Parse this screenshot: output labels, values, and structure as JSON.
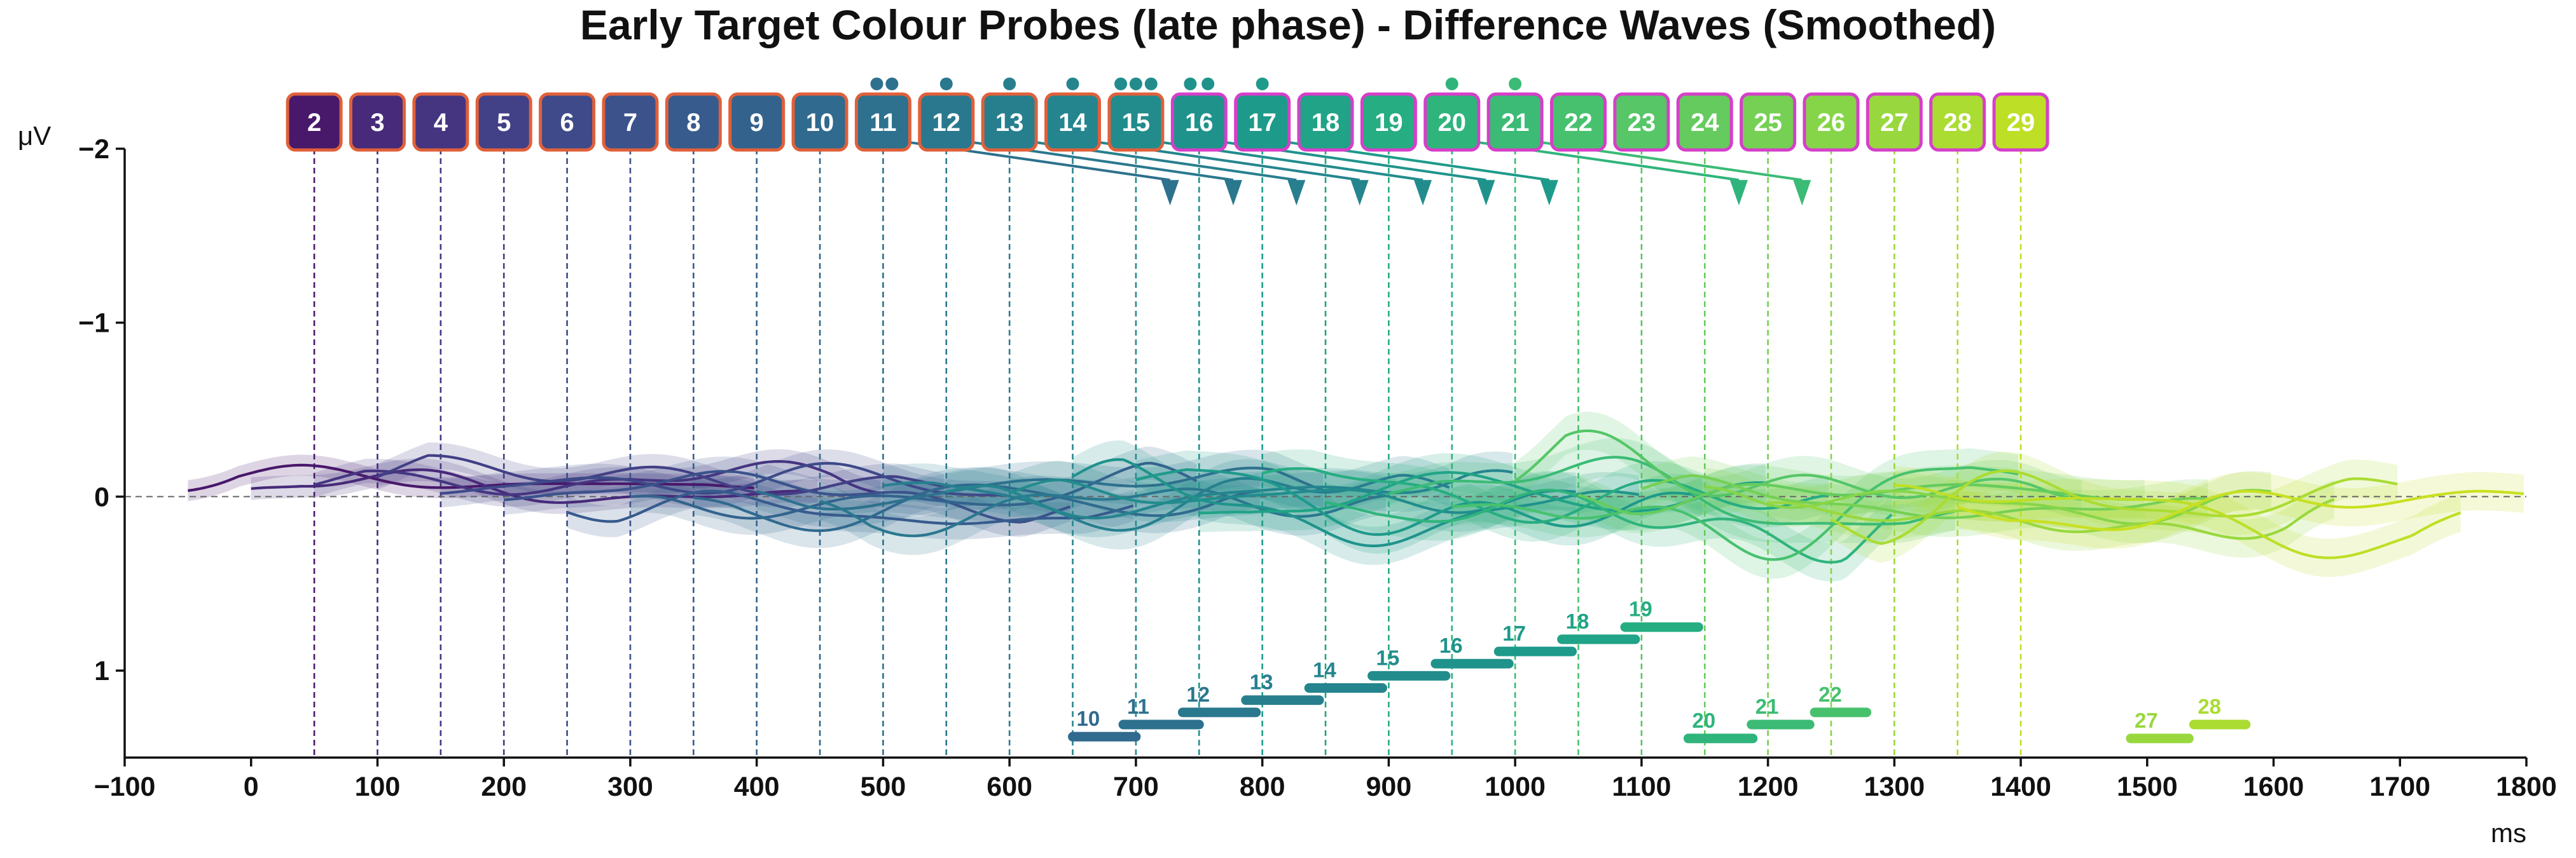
{
  "chart_data": {
    "type": "line",
    "title": "Early Target Colour Probes (late phase) - Difference Waves (Smoothed)",
    "xlabel": "ms",
    "ylabel": "μV",
    "xlim": [
      -100,
      1800
    ],
    "ylim": [
      -2,
      1.5
    ],
    "y_inverted": true,
    "x_ticks": [
      -100,
      0,
      100,
      200,
      300,
      400,
      500,
      600,
      700,
      800,
      900,
      1000,
      1100,
      1200,
      1300,
      1400,
      1500,
      1600,
      1700,
      1800
    ],
    "y_ticks": [
      -2,
      -1,
      0,
      1
    ],
    "y_tick_labels": [
      "−2",
      "−1",
      "0",
      "1"
    ],
    "zero_line": true,
    "grid": false,
    "probes": [
      {
        "label": "2",
        "x": 50,
        "color": "#48186a",
        "border": "#e0603a"
      },
      {
        "label": "3",
        "x": 100,
        "color": "#472a7a",
        "border": "#e0603a"
      },
      {
        "label": "4",
        "x": 150,
        "color": "#453581",
        "border": "#e0603a"
      },
      {
        "label": "5",
        "x": 200,
        "color": "#424086",
        "border": "#e0603a"
      },
      {
        "label": "6",
        "x": 250,
        "color": "#3e4a89",
        "border": "#e0603a"
      },
      {
        "label": "7",
        "x": 300,
        "color": "#3b528b",
        "border": "#e0603a"
      },
      {
        "label": "8",
        "x": 350,
        "color": "#375b8d",
        "border": "#e0603a"
      },
      {
        "label": "9",
        "x": 400,
        "color": "#33638d",
        "border": "#e0603a"
      },
      {
        "label": "10",
        "x": 450,
        "color": "#306a8e",
        "border": "#e0603a"
      },
      {
        "label": "11",
        "x": 500,
        "color": "#2d718e",
        "border": "#e0603a"
      },
      {
        "label": "12",
        "x": 550,
        "color": "#2a788e",
        "border": "#e0603a"
      },
      {
        "label": "13",
        "x": 600,
        "color": "#277f8e",
        "border": "#e0603a"
      },
      {
        "label": "14",
        "x": 650,
        "color": "#25858e",
        "border": "#e0603a"
      },
      {
        "label": "15",
        "x": 700,
        "color": "#228c8d",
        "border": "#e0603a"
      },
      {
        "label": "16",
        "x": 750,
        "color": "#1f938b",
        "border": "#d63fc9"
      },
      {
        "label": "17",
        "x": 800,
        "color": "#1e9a8a",
        "border": "#d63fc9"
      },
      {
        "label": "18",
        "x": 850,
        "color": "#20a386",
        "border": "#d63fc9"
      },
      {
        "label": "19",
        "x": 900,
        "color": "#26ad81",
        "border": "#d63fc9"
      },
      {
        "label": "20",
        "x": 950,
        "color": "#2fb47c",
        "border": "#d63fc9"
      },
      {
        "label": "21",
        "x": 1000,
        "color": "#3bbb75",
        "border": "#d63fc9"
      },
      {
        "label": "22",
        "x": 1050,
        "color": "#48c16e",
        "border": "#d63fc9"
      },
      {
        "label": "23",
        "x": 1100,
        "color": "#56c667",
        "border": "#d63fc9"
      },
      {
        "label": "24",
        "x": 1150,
        "color": "#65cb5e",
        "border": "#d63fc9"
      },
      {
        "label": "25",
        "x": 1200,
        "color": "#75d054",
        "border": "#d63fc9"
      },
      {
        "label": "26",
        "x": 1250,
        "color": "#86d549",
        "border": "#d63fc9"
      },
      {
        "label": "27",
        "x": 1300,
        "color": "#98d83e",
        "border": "#d63fc9"
      },
      {
        "label": "28",
        "x": 1350,
        "color": "#aadc32",
        "border": "#d63fc9"
      },
      {
        "label": "29",
        "x": 1400,
        "color": "#bddf26",
        "border": "#d63fc9"
      }
    ],
    "sig_dots": [
      {
        "x": 495,
        "color": "#2d718e"
      },
      {
        "x": 507,
        "color": "#2d718e"
      },
      {
        "x": 550,
        "color": "#2a788e"
      },
      {
        "x": 600,
        "color": "#277f8e"
      },
      {
        "x": 650,
        "color": "#25858e"
      },
      {
        "x": 688,
        "color": "#228c8d"
      },
      {
        "x": 700,
        "color": "#228c8d"
      },
      {
        "x": 712,
        "color": "#228c8d"
      },
      {
        "x": 743,
        "color": "#1f938b"
      },
      {
        "x": 757,
        "color": "#1f938b"
      },
      {
        "x": 800,
        "color": "#1e9a8a"
      },
      {
        "x": 950,
        "color": "#2fb47c"
      },
      {
        "x": 1000,
        "color": "#3bbb75"
      }
    ],
    "pointers": [
      {
        "from_x": 500,
        "to_x": 727,
        "y": -1.82,
        "color": "#2d718e"
      },
      {
        "from_x": 550,
        "to_x": 777,
        "y": -1.82,
        "color": "#2a788e"
      },
      {
        "from_x": 600,
        "to_x": 827,
        "y": -1.82,
        "color": "#277f8e"
      },
      {
        "from_x": 650,
        "to_x": 877,
        "y": -1.82,
        "color": "#25858e"
      },
      {
        "from_x": 700,
        "to_x": 927,
        "y": -1.82,
        "color": "#228c8d"
      },
      {
        "from_x": 750,
        "to_x": 977,
        "y": -1.82,
        "color": "#1f938b"
      },
      {
        "from_x": 800,
        "to_x": 1027,
        "y": -1.82,
        "color": "#1e9a8a"
      },
      {
        "from_x": 950,
        "to_x": 1177,
        "y": -1.82,
        "color": "#2fb47c"
      },
      {
        "from_x": 1000,
        "to_x": 1227,
        "y": -1.82,
        "color": "#3bbb75"
      }
    ],
    "segments": [
      {
        "label": "10",
        "x1": 650,
        "x2": 700,
        "y": 1.38,
        "color": "#306a8e"
      },
      {
        "label": "11",
        "x1": 690,
        "x2": 750,
        "y": 1.31,
        "color": "#2d718e"
      },
      {
        "label": "12",
        "x1": 737,
        "x2": 795,
        "y": 1.24,
        "color": "#2a788e"
      },
      {
        "label": "13",
        "x1": 787,
        "x2": 845,
        "y": 1.17,
        "color": "#277f8e"
      },
      {
        "label": "14",
        "x1": 837,
        "x2": 895,
        "y": 1.1,
        "color": "#25858e"
      },
      {
        "label": "15",
        "x1": 887,
        "x2": 945,
        "y": 1.03,
        "color": "#228c8d"
      },
      {
        "label": "16",
        "x1": 937,
        "x2": 995,
        "y": 0.96,
        "color": "#1f938b"
      },
      {
        "label": "17",
        "x1": 987,
        "x2": 1045,
        "y": 0.89,
        "color": "#1e9a8a"
      },
      {
        "label": "18",
        "x1": 1037,
        "x2": 1095,
        "y": 0.82,
        "color": "#20a386"
      },
      {
        "label": "19",
        "x1": 1087,
        "x2": 1145,
        "y": 0.75,
        "color": "#26ad81"
      },
      {
        "label": "20",
        "x1": 1137,
        "x2": 1188,
        "y": 1.39,
        "color": "#2fb47c"
      },
      {
        "label": "21",
        "x1": 1187,
        "x2": 1233,
        "y": 1.31,
        "color": "#3bbb75"
      },
      {
        "label": "22",
        "x1": 1237,
        "x2": 1278,
        "y": 1.24,
        "color": "#48c16e"
      },
      {
        "label": "27",
        "x1": 1487,
        "x2": 1533,
        "y": 1.39,
        "color": "#98d83e"
      },
      {
        "label": "28",
        "x1": 1537,
        "x2": 1578,
        "y": 1.31,
        "color": "#aadc32"
      }
    ],
    "waves": [
      {
        "start": -50,
        "end": 400,
        "color": "#48186a"
      },
      {
        "start": 0,
        "end": 450,
        "color": "#472a7a"
      },
      {
        "start": 50,
        "end": 500,
        "color": "#453581"
      },
      {
        "start": 100,
        "end": 550,
        "color": "#424086"
      },
      {
        "start": 150,
        "end": 600,
        "color": "#3e4a89"
      },
      {
        "start": 200,
        "end": 650,
        "color": "#3b528b"
      },
      {
        "start": 250,
        "end": 700,
        "color": "#375b8d"
      },
      {
        "start": 300,
        "end": 750,
        "color": "#33638d"
      },
      {
        "start": 350,
        "end": 800,
        "color": "#306a8e"
      },
      {
        "start": 400,
        "end": 850,
        "color": "#2d718e"
      },
      {
        "start": 450,
        "end": 900,
        "color": "#2a788e"
      },
      {
        "start": 500,
        "end": 950,
        "color": "#277f8e"
      },
      {
        "start": 550,
        "end": 1000,
        "color": "#25858e"
      },
      {
        "start": 600,
        "end": 1050,
        "color": "#228c8d"
      },
      {
        "start": 650,
        "end": 1100,
        "color": "#1f938b"
      },
      {
        "start": 700,
        "end": 1150,
        "color": "#1e9a8a"
      },
      {
        "start": 750,
        "end": 1200,
        "color": "#20a386"
      },
      {
        "start": 800,
        "end": 1250,
        "color": "#26ad81"
      },
      {
        "start": 850,
        "end": 1300,
        "color": "#2fb47c"
      },
      {
        "start": 900,
        "end": 1350,
        "color": "#3bbb75"
      },
      {
        "start": 950,
        "end": 1400,
        "color": "#48c16e"
      },
      {
        "start": 1000,
        "end": 1450,
        "color": "#56c667"
      },
      {
        "start": 1050,
        "end": 1500,
        "color": "#65cb5e"
      },
      {
        "start": 1100,
        "end": 1550,
        "color": "#75d054"
      },
      {
        "start": 1150,
        "end": 1600,
        "color": "#86d549"
      },
      {
        "start": 1200,
        "end": 1650,
        "color": "#98d83e"
      },
      {
        "start": 1250,
        "end": 1700,
        "color": "#aadc32"
      },
      {
        "start": 1300,
        "end": 1750,
        "color": "#bddf26"
      },
      {
        "start": 1350,
        "end": 1800,
        "color": "#c8e020"
      }
    ]
  }
}
